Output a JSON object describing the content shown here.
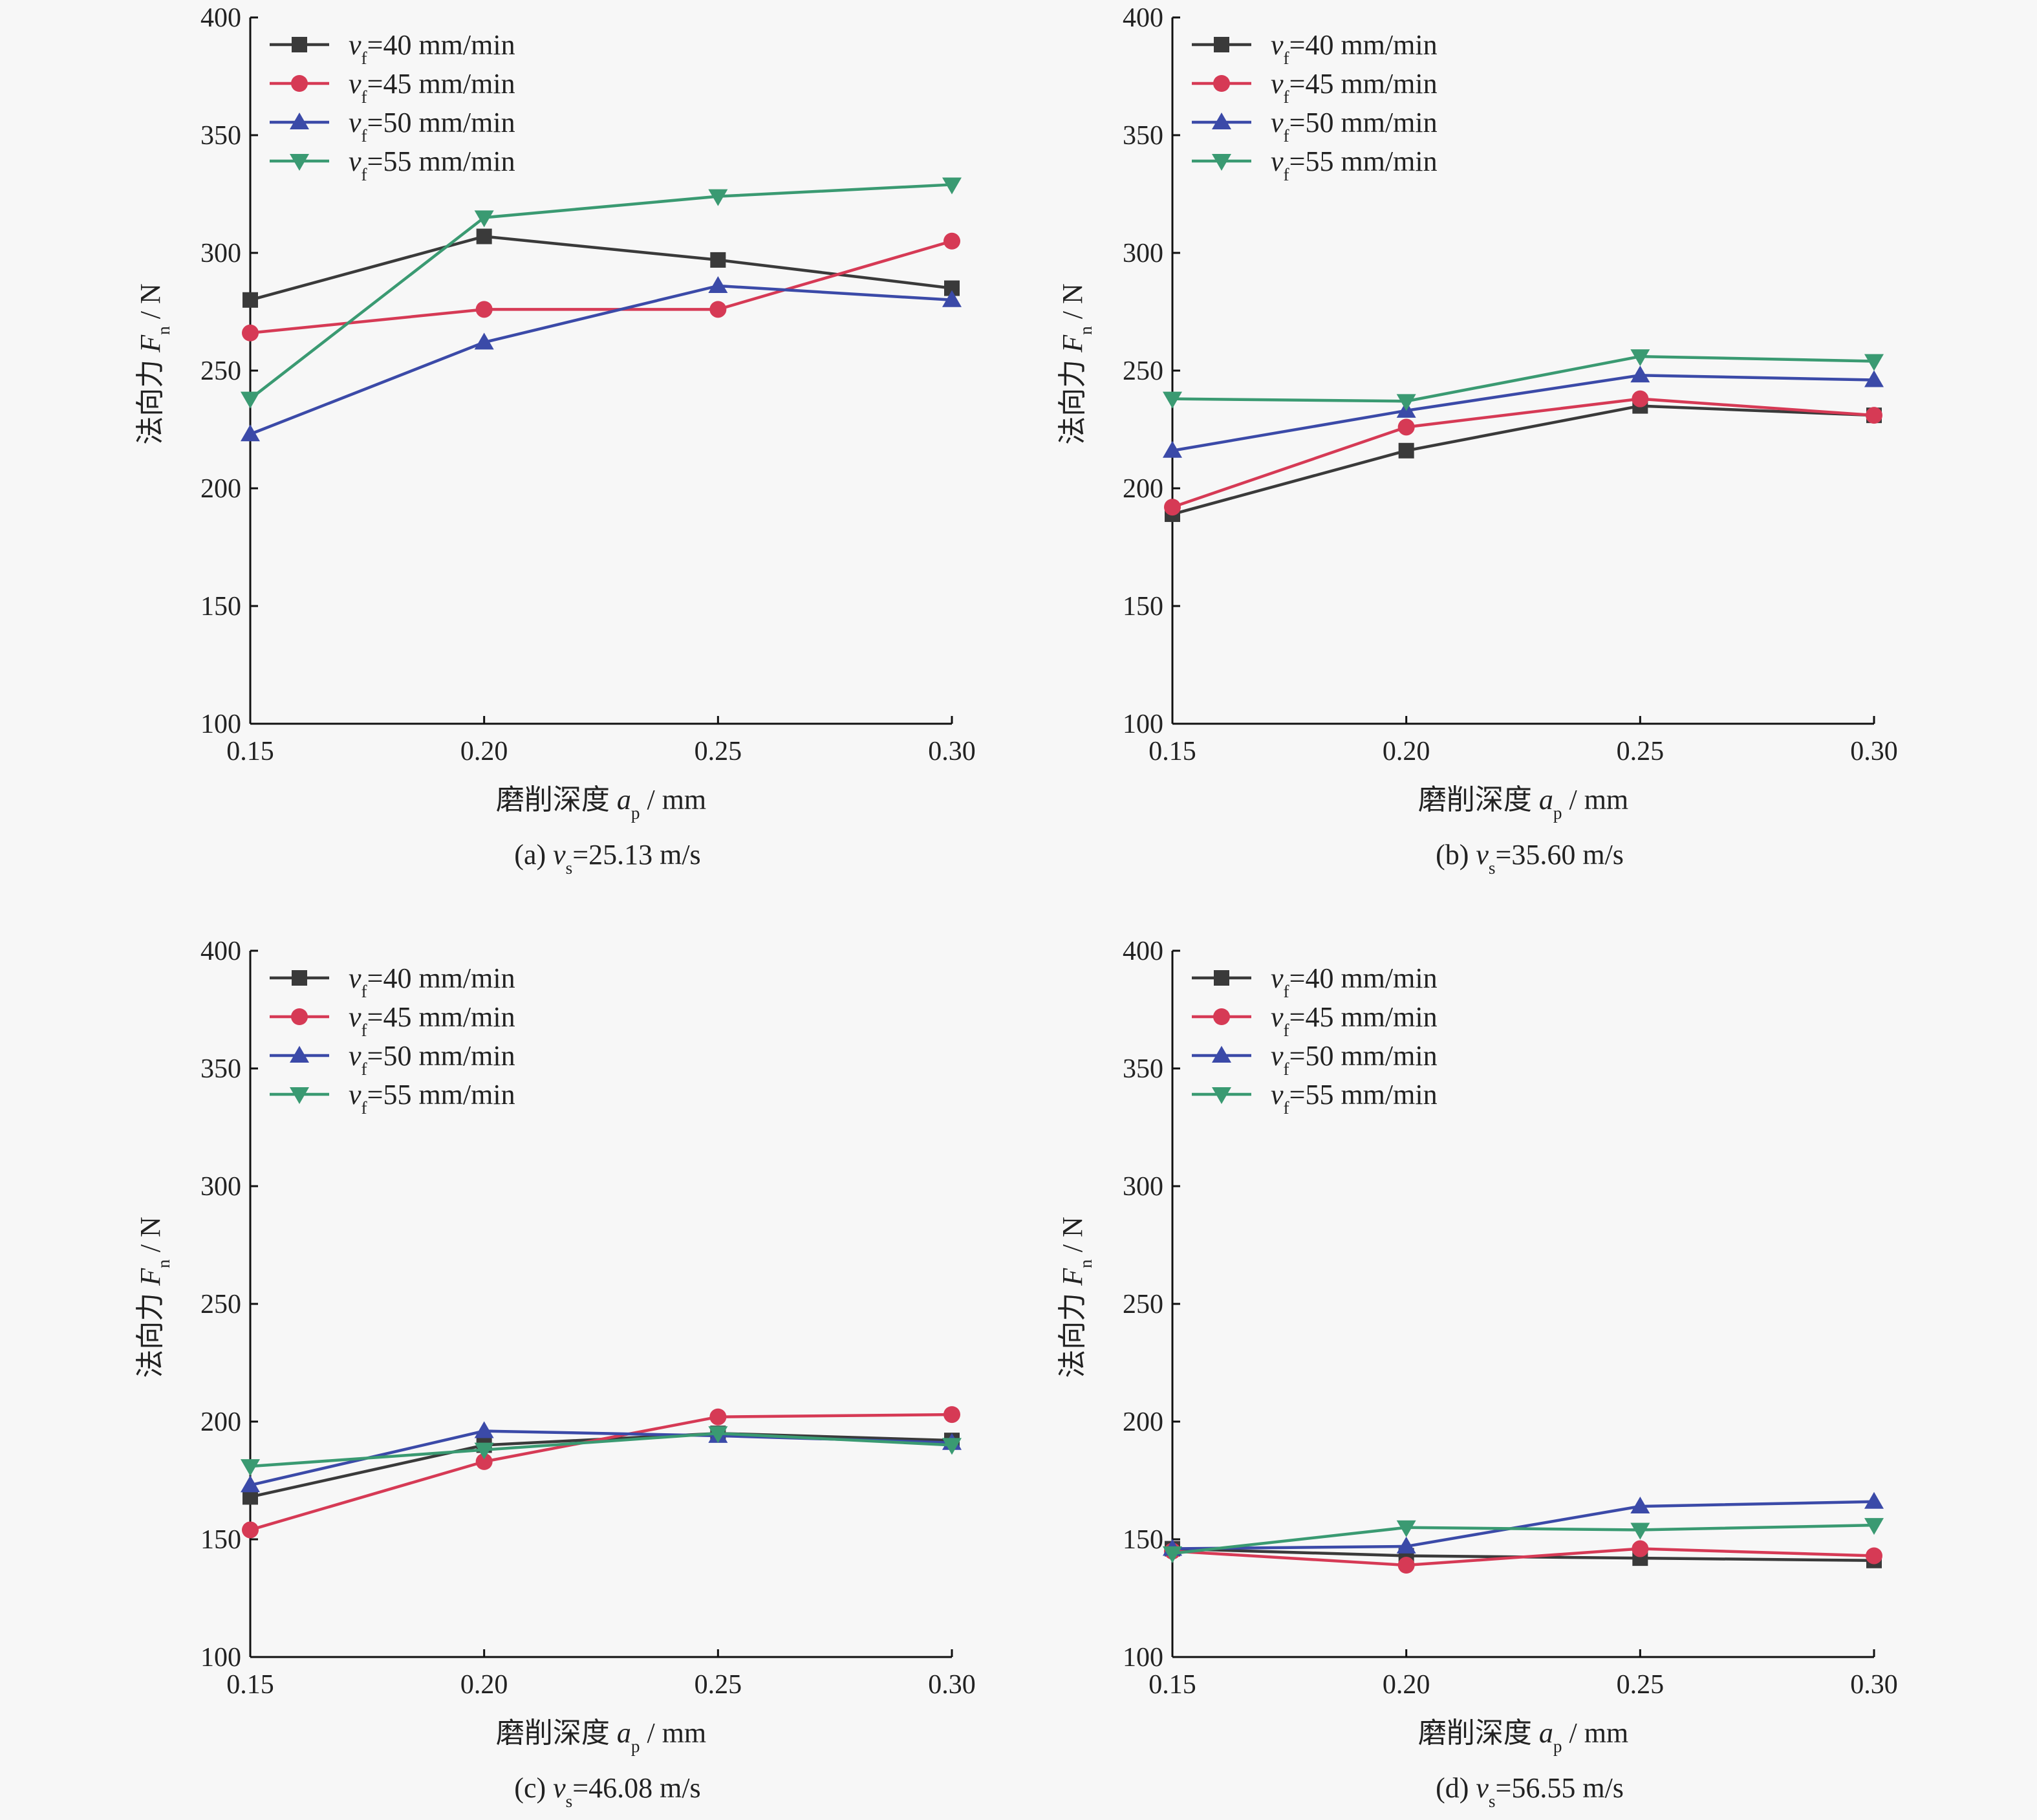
{
  "colors": {
    "vf40": "#3a3a3a",
    "vf45": "#d63a55",
    "vf50": "#3b4aa8",
    "vf55": "#3a9a72"
  },
  "legend": [
    {
      "var": "v",
      "sub": "f",
      "text": "=40 mm/min",
      "marker": "square",
      "color": "#3a3a3a"
    },
    {
      "var": "v",
      "sub": "f",
      "text": "=45 mm/min",
      "marker": "circle",
      "color": "#d63a55"
    },
    {
      "var": "v",
      "sub": "f",
      "text": "=50 mm/min",
      "marker": "triangle-up",
      "color": "#3b4aa8"
    },
    {
      "var": "v",
      "sub": "f",
      "text": "=55 mm/min",
      "marker": "triangle-down",
      "color": "#3a9a72"
    }
  ],
  "chart_data": [
    {
      "type": "line",
      "caption": {
        "prefix": "(a) ",
        "var": "v",
        "sub": "s",
        "suffix": "=25.13 m/s"
      },
      "ylabel": {
        "prefix": "法向力 ",
        "var": "F",
        "sub": "n",
        "suffix": " / N"
      },
      "xlabel": {
        "prefix": "磨削深度 ",
        "var": "a",
        "sub": "p",
        "suffix": " / mm"
      },
      "x": [
        0.15,
        0.2,
        0.25,
        0.3
      ],
      "x_ticks": [
        "0.15",
        "0.20",
        "0.25",
        "0.30"
      ],
      "y_ticks": [
        "100",
        "150",
        "200",
        "250",
        "300",
        "350",
        "400"
      ],
      "xlim": [
        0.15,
        0.3
      ],
      "ylim": [
        100,
        400
      ],
      "series": [
        {
          "name": "vf=40 mm/min",
          "values": [
            280,
            307,
            297,
            285
          ]
        },
        {
          "name": "vf=45 mm/min",
          "values": [
            266,
            276,
            276,
            305
          ]
        },
        {
          "name": "vf=50 mm/min",
          "values": [
            223,
            262,
            286,
            280
          ]
        },
        {
          "name": "vf=55 mm/min",
          "values": [
            238,
            315,
            324,
            329
          ]
        }
      ]
    },
    {
      "type": "line",
      "caption": {
        "prefix": "(b) ",
        "var": "v",
        "sub": "s",
        "suffix": "=35.60 m/s"
      },
      "ylabel": {
        "prefix": "法向力 ",
        "var": "F",
        "sub": "n",
        "suffix": " / N"
      },
      "xlabel": {
        "prefix": "磨削深度 ",
        "var": "a",
        "sub": "p",
        "suffix": " / mm"
      },
      "x": [
        0.15,
        0.2,
        0.25,
        0.3
      ],
      "x_ticks": [
        "0.15",
        "0.20",
        "0.25",
        "0.30"
      ],
      "y_ticks": [
        "100",
        "150",
        "200",
        "250",
        "300",
        "350",
        "400"
      ],
      "xlim": [
        0.15,
        0.3
      ],
      "ylim": [
        100,
        400
      ],
      "series": [
        {
          "name": "vf=40 mm/min",
          "values": [
            189,
            216,
            235,
            231
          ]
        },
        {
          "name": "vf=45 mm/min",
          "values": [
            192,
            226,
            238,
            231
          ]
        },
        {
          "name": "vf=50 mm/min",
          "values": [
            216,
            233,
            248,
            246
          ]
        },
        {
          "name": "vf=55 mm/min",
          "values": [
            238,
            237,
            256,
            254
          ]
        }
      ]
    },
    {
      "type": "line",
      "caption": {
        "prefix": "(c) ",
        "var": "v",
        "sub": "s",
        "suffix": "=46.08 m/s"
      },
      "ylabel": {
        "prefix": "法向力 ",
        "var": "F",
        "sub": "n",
        "suffix": " / N"
      },
      "xlabel": {
        "prefix": "磨削深度 ",
        "var": "a",
        "sub": "p",
        "suffix": " / mm"
      },
      "x": [
        0.15,
        0.2,
        0.25,
        0.3
      ],
      "x_ticks": [
        "0.15",
        "0.20",
        "0.25",
        "0.30"
      ],
      "y_ticks": [
        "100",
        "150",
        "200",
        "250",
        "300",
        "350",
        "400"
      ],
      "xlim": [
        0.15,
        0.3
      ],
      "ylim": [
        100,
        400
      ],
      "series": [
        {
          "name": "vf=40 mm/min",
          "values": [
            168,
            190,
            195,
            192
          ]
        },
        {
          "name": "vf=45 mm/min",
          "values": [
            154,
            183,
            202,
            203
          ]
        },
        {
          "name": "vf=50 mm/min",
          "values": [
            173,
            196,
            194,
            191
          ]
        },
        {
          "name": "vf=55 mm/min",
          "values": [
            181,
            188,
            195,
            190
          ]
        }
      ]
    },
    {
      "type": "line",
      "caption": {
        "prefix": "(d) ",
        "var": "v",
        "sub": "s",
        "suffix": "=56.55 m/s"
      },
      "ylabel": {
        "prefix": "法向力 ",
        "var": "F",
        "sub": "n",
        "suffix": " / N"
      },
      "xlabel": {
        "prefix": "磨削深度 ",
        "var": "a",
        "sub": "p",
        "suffix": " / mm"
      },
      "x": [
        0.15,
        0.2,
        0.25,
        0.3
      ],
      "x_ticks": [
        "0.15",
        "0.20",
        "0.25",
        "0.30"
      ],
      "y_ticks": [
        "100",
        "150",
        "200",
        "250",
        "300",
        "350",
        "400"
      ],
      "xlim": [
        0.15,
        0.3
      ],
      "ylim": [
        100,
        400
      ],
      "series": [
        {
          "name": "vf=40 mm/min",
          "values": [
            146,
            143,
            142,
            141
          ]
        },
        {
          "name": "vf=45 mm/min",
          "values": [
            145,
            139,
            146,
            143
          ]
        },
        {
          "name": "vf=50 mm/min",
          "values": [
            146,
            147,
            164,
            166
          ]
        },
        {
          "name": "vf=55 mm/min",
          "values": [
            144,
            155,
            154,
            156
          ]
        }
      ]
    }
  ]
}
